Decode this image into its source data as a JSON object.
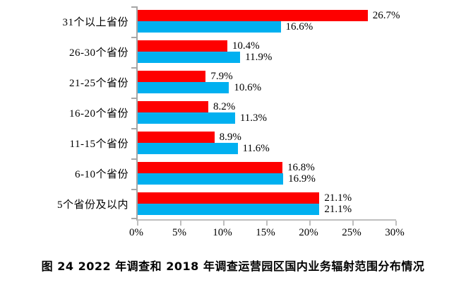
{
  "caption": "图 24  2022 年调查和 2018 年调查运营园区国内业务辐射范围分布情况",
  "chart_data": {
    "type": "bar",
    "orientation": "horizontal",
    "title": "",
    "xlabel": "",
    "ylabel": "",
    "categories": [
      "31个以上省份",
      "26-30个省份",
      "21-25个省份",
      "16-20个省份",
      "11-15个省份",
      "6-10个省份",
      "5个省份及以内"
    ],
    "series": [
      {
        "name": "2022年调查",
        "color": "#fe0000",
        "values": [
          26.7,
          10.4,
          7.9,
          8.2,
          8.9,
          16.8,
          21.1
        ]
      },
      {
        "name": "2018年调查",
        "color": "#00b0f0",
        "values": [
          16.6,
          11.9,
          10.6,
          11.3,
          11.6,
          16.9,
          21.1
        ]
      }
    ],
    "value_suffix": "%",
    "x_ticks": [
      "0%",
      "5%",
      "10%",
      "15%",
      "20%",
      "25%",
      "30%"
    ],
    "xlim": [
      0,
      30
    ],
    "grid": false,
    "legend": "none",
    "data_labels": true,
    "axis_color": "#a6a6a6",
    "label_color": "#000000"
  }
}
